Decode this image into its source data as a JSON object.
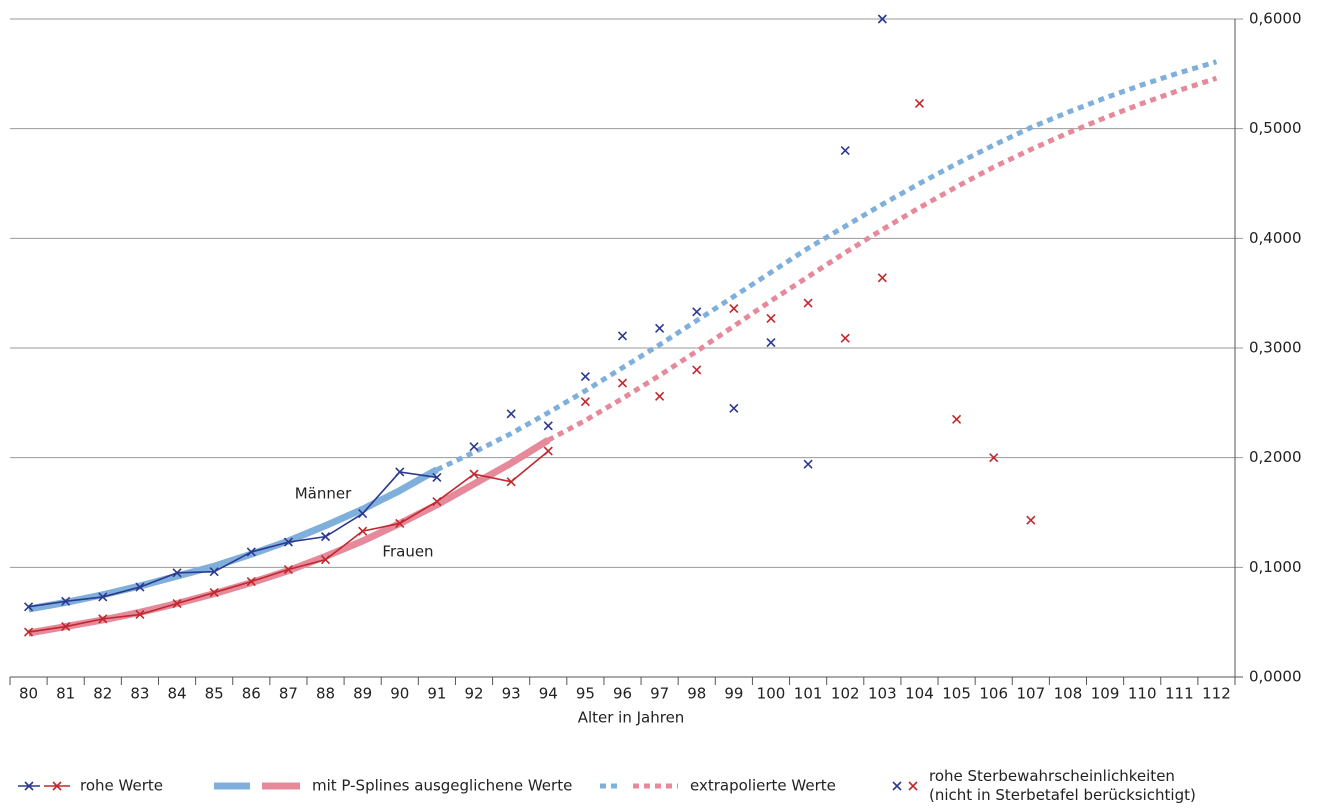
{
  "chart_data": {
    "type": "line",
    "x_label": "Alter in Jahren",
    "annotations": [
      "Männer",
      "Frauen"
    ],
    "categories": [
      "80",
      "81",
      "82",
      "83",
      "84",
      "85",
      "86",
      "87",
      "88",
      "89",
      "90",
      "91",
      "92",
      "93",
      "94",
      "95",
      "96",
      "97",
      "98",
      "99",
      "100",
      "101",
      "102",
      "103",
      "104",
      "105",
      "106",
      "107",
      "108",
      "109",
      "110",
      "111",
      "112"
    ],
    "ylim": [
      0,
      0.6
    ],
    "yticks": [
      {
        "value": 0,
        "label": "0,0000"
      },
      {
        "value": 0.1,
        "label": "0,1000"
      },
      {
        "value": 0.2,
        "label": "0,2000"
      },
      {
        "value": 0.3,
        "label": "0,3000"
      },
      {
        "value": 0.4,
        "label": "0,4000"
      },
      {
        "value": 0.5,
        "label": "0,5000"
      },
      {
        "value": 0.6,
        "label": "0,6000"
      }
    ],
    "grid": true,
    "series": [
      {
        "style": "line-marker",
        "color": "#2b3990",
        "values": [
          0.064,
          0.069,
          0.073,
          0.082,
          0.095,
          0.096,
          0.114,
          0.123,
          0.128,
          0.149,
          0.187,
          0.182,
          null,
          null,
          null,
          null,
          null,
          null,
          null,
          null,
          null,
          null,
          null,
          null,
          null,
          null,
          null,
          null,
          null,
          null,
          null,
          null,
          null
        ]
      },
      {
        "style": "line-marker",
        "color": "#c0282e",
        "values": [
          0.041,
          0.046,
          0.053,
          0.057,
          0.067,
          0.077,
          0.087,
          0.098,
          0.107,
          0.133,
          0.14,
          0.16,
          0.185,
          0.178,
          0.206,
          null,
          null,
          null,
          null,
          null,
          null,
          null,
          null,
          null,
          null,
          null,
          null,
          null,
          null,
          null,
          null,
          null,
          null
        ]
      },
      {
        "style": "thick",
        "color": "#7fb0dc",
        "values": [
          0.062,
          0.068,
          0.075,
          0.083,
          0.092,
          0.101,
          0.112,
          0.124,
          0.138,
          0.153,
          0.17,
          0.189,
          null,
          null,
          null,
          null,
          null,
          null,
          null,
          null,
          null,
          null,
          null,
          null,
          null,
          null,
          null,
          null,
          null,
          null,
          null,
          null,
          null
        ]
      },
      {
        "style": "thick",
        "color": "#e5899b",
        "values": [
          0.04,
          0.046,
          0.052,
          0.059,
          0.067,
          0.076,
          0.086,
          0.097,
          0.11,
          0.124,
          0.14,
          0.157,
          0.176,
          0.195,
          0.216,
          null,
          null,
          null,
          null,
          null,
          null,
          null,
          null,
          null,
          null,
          null,
          null,
          null,
          null,
          null,
          null,
          null,
          null
        ]
      },
      {
        "style": "dotted",
        "color": "#7fb0dc",
        "values": [
          null,
          null,
          null,
          null,
          null,
          null,
          null,
          null,
          null,
          null,
          null,
          0.189,
          0.205,
          0.222,
          0.241,
          0.261,
          0.282,
          0.303,
          0.325,
          0.347,
          0.369,
          0.391,
          0.411,
          0.431,
          0.45,
          0.468,
          0.485,
          0.501,
          0.515,
          0.528,
          0.54,
          0.551,
          0.561
        ]
      },
      {
        "style": "dotted",
        "color": "#e5899b",
        "values": [
          null,
          null,
          null,
          null,
          null,
          null,
          null,
          null,
          null,
          null,
          null,
          null,
          null,
          null,
          0.216,
          0.234,
          0.254,
          0.275,
          0.297,
          0.32,
          0.343,
          0.365,
          0.387,
          0.408,
          0.428,
          0.447,
          0.465,
          0.481,
          0.496,
          0.51,
          0.523,
          0.535,
          0.546
        ]
      },
      {
        "style": "marker",
        "color": "#2b3990",
        "values": [
          null,
          null,
          null,
          null,
          null,
          null,
          null,
          null,
          null,
          null,
          null,
          null,
          0.21,
          0.24,
          0.229,
          0.274,
          0.311,
          0.318,
          0.333,
          0.245,
          0.305,
          0.194,
          0.48,
          0.6,
          null,
          null,
          null,
          null,
          null,
          null,
          null,
          null,
          null
        ]
      },
      {
        "style": "marker",
        "color": "#c0282e",
        "values": [
          null,
          null,
          null,
          null,
          null,
          null,
          null,
          null,
          null,
          null,
          null,
          null,
          null,
          null,
          null,
          0.251,
          0.268,
          0.256,
          0.28,
          0.336,
          0.327,
          0.341,
          0.309,
          0.364,
          0.523,
          0.235,
          0.2,
          0.143,
          null,
          null,
          null,
          null,
          null
        ]
      }
    ],
    "legend": [
      [
        "rohe Werte"
      ],
      [
        "mit P-Splines ausgeglichene Werte"
      ],
      [
        "extrapolierte Werte"
      ],
      [
        "rohe Sterbewahrscheinlichkeiten",
        "(nicht in Sterbetafel berücksichtigt)"
      ]
    ]
  }
}
